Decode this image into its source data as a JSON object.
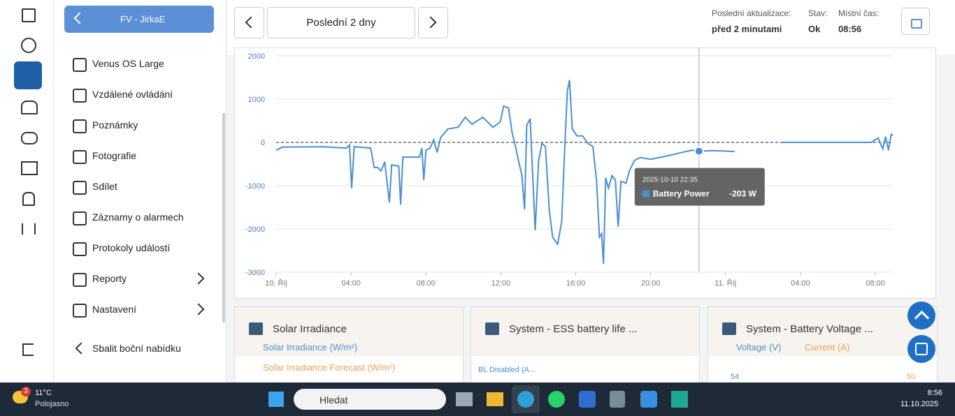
{
  "sidebar": {
    "title": "FV - JirkaE",
    "items": [
      "Venus OS Large",
      "Vzdálené ovládání",
      "Poznámky",
      "Fotografie",
      "Sdílet",
      "Záznamy o alarmech",
      "Protokoly událostí",
      "Reporty",
      "Nastavení"
    ],
    "collapse": "Sbalit boční nabídku"
  },
  "toolbar": {
    "range": "Poslední 2 dny",
    "last_update_label": "Poslední aktualizace:",
    "last_update": "před 2 minutami",
    "status_label": "Stav:",
    "status": "Ok",
    "time_label": "Místní čas:",
    "time": "08:56"
  },
  "chart_data": {
    "type": "line",
    "x": [
      "2025-10-10 00:00",
      "2025-10-10 00:20",
      "2025-10-10 02:30",
      "2025-10-10 03:45",
      "2025-10-10 03:55",
      "2025-10-10 04:02",
      "2025-10-10 04:10",
      "2025-10-10 05:03",
      "2025-10-10 05:14",
      "2025-10-10 05:25",
      "2025-10-10 05:36",
      "2025-10-10 05:48",
      "2025-10-10 06:03",
      "2025-10-10 06:10",
      "2025-10-10 06:33",
      "2025-10-10 06:39",
      "2025-10-10 06:46",
      "2025-10-10 07:40",
      "2025-10-10 07:47",
      "2025-10-10 07:53",
      "2025-10-10 08:00",
      "2025-10-10 08:13",
      "2025-10-10 08:25",
      "2025-10-10 08:36",
      "2025-10-10 08:47",
      "2025-10-10 09:10",
      "2025-10-10 09:43",
      "2025-10-10 10:06",
      "2025-10-10 10:28",
      "2025-10-10 11:02",
      "2025-10-10 11:35",
      "2025-10-10 11:58",
      "2025-10-10 12:09",
      "2025-10-10 12:25",
      "2025-10-10 12:36",
      "2025-10-10 12:47",
      "2025-10-10 12:59",
      "2025-10-10 13:07",
      "2025-10-10 13:16",
      "2025-10-10 13:23",
      "2025-10-10 13:34",
      "2025-10-10 13:50",
      "2025-10-10 14:01",
      "2025-10-10 14:12",
      "2025-10-10 14:23",
      "2025-10-10 14:35",
      "2025-10-10 14:46",
      "2025-10-10 15:02",
      "2025-10-10 15:15",
      "2025-10-10 15:24",
      "2025-10-10 15:33",
      "2025-10-10 15:40",
      "2025-10-10 15:49",
      "2025-10-10 16:04",
      "2025-10-10 16:22",
      "2025-10-10 16:38",
      "2025-10-10 16:55",
      "2025-10-10 17:07",
      "2025-10-10 17:16",
      "2025-10-10 17:23",
      "2025-10-10 17:29",
      "2025-10-10 17:36",
      "2025-10-10 17:45",
      "2025-10-10 17:56",
      "2025-10-10 18:07",
      "2025-10-10 18:16",
      "2025-10-10 18:25",
      "2025-10-10 18:41",
      "2025-10-10 18:52",
      "2025-10-10 19:08",
      "2025-10-10 19:26",
      "2025-10-10 20:00",
      "2025-10-10 20:34",
      "2025-10-10 21:07",
      "2025-10-10 21:41",
      "2025-10-10 22:14",
      "2025-10-10 22:35",
      "2025-10-10 23:20",
      "2025-10-11 00:29",
      "2025-10-11 01:30",
      "2025-10-11 02:55",
      "2025-10-11 06:05",
      "2025-10-11 07:46",
      "2025-10-11 08:09",
      "2025-10-11 08:24",
      "2025-10-11 08:33",
      "2025-10-11 08:42",
      "2025-10-11 08:51",
      "2025-10-11 08:56"
    ],
    "series": [
      {
        "name": "Battery Power",
        "color": "#4a8fd4",
        "values": [
          -180,
          -110,
          -100,
          -130,
          -60,
          -1060,
          -100,
          -130,
          -580,
          -580,
          -660,
          -450,
          -1390,
          -520,
          -550,
          -1440,
          -340,
          -340,
          -130,
          -870,
          -180,
          -130,
          60,
          -230,
          110,
          310,
          350,
          580,
          420,
          580,
          350,
          470,
          840,
          790,
          230,
          -100,
          -500,
          -740,
          -1550,
          390,
          550,
          -2030,
          -420,
          -20,
          -100,
          -1550,
          -2190,
          -2350,
          -1840,
          -260,
          1190,
          1440,
          310,
          150,
          150,
          -20,
          -100,
          -900,
          -2190,
          -2110,
          -2810,
          -820,
          -1060,
          -770,
          -870,
          -1950,
          -900,
          -940,
          -660,
          -420,
          -350,
          -390,
          -340,
          -290,
          -230,
          -180,
          -203,
          -190,
          -210,
          null,
          0,
          0,
          0,
          100,
          -150,
          130,
          -180,
          190,
          160
        ]
      }
    ],
    "xlim": [
      "2025-10-10 00:00",
      "2025-10-11 08:56"
    ],
    "xticks": [
      {
        "value": "2025-10-10 00:00",
        "label": "10. Říj"
      },
      {
        "value": "2025-10-10 04:00",
        "label": "04:00"
      },
      {
        "value": "2025-10-10 08:00",
        "label": "08:00"
      },
      {
        "value": "2025-10-10 12:00",
        "label": "12:00"
      },
      {
        "value": "2025-10-10 16:00",
        "label": "16:00"
      },
      {
        "value": "2025-10-10 20:00",
        "label": "20:00"
      },
      {
        "value": "2025-10-11 00:00",
        "label": "11. Říj"
      },
      {
        "value": "2025-10-11 04:00",
        "label": "04:00"
      },
      {
        "value": "2025-10-11 08:00",
        "label": "08:00"
      }
    ],
    "ylim": [
      -3000,
      2000
    ],
    "yticks": [
      2000,
      1000,
      0,
      -1000,
      -2000,
      -3000
    ],
    "grid": true,
    "reference_line": 0,
    "tooltip": {
      "x": "2025-10-10 22:35",
      "series": "Battery Power",
      "value": -203,
      "value_label": "-203 W"
    }
  },
  "widgets": [
    {
      "title": "Solar Irradiance",
      "legend": [
        "Solar Irradiance (W/m²)",
        "Solar Irradiance Forecast (W/m²)"
      ]
    },
    {
      "title": "System - ESS battery life ...",
      "legend": [
        "BL Disabled (A..."
      ]
    },
    {
      "title": "System - Battery Voltage ...",
      "legend": [
        "Voltage (V)",
        "Current (A)"
      ],
      "y_left": 54,
      "y_right": 50
    }
  ],
  "taskbar": {
    "badge": "3",
    "temperature": "11°C",
    "weather": "Polojasno",
    "search": "Hledat",
    "clock": "8:56",
    "date": "11.10.2025"
  }
}
